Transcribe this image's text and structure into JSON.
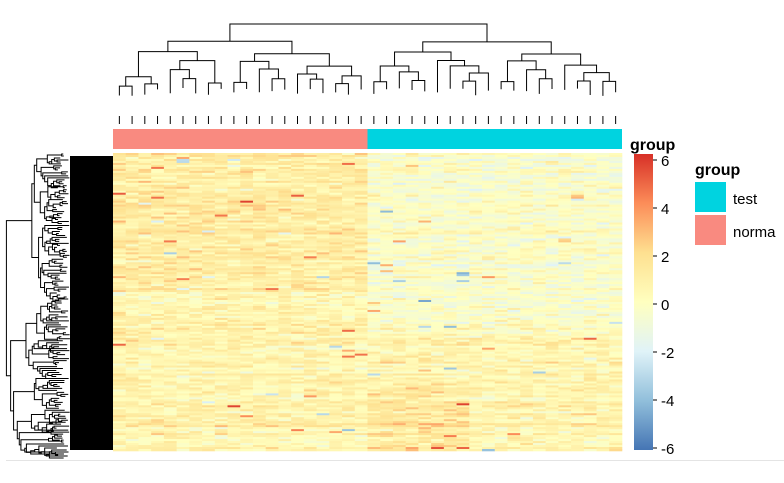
{
  "chart_data": {
    "type": "heatmap",
    "color_key": {
      "title": "group",
      "ticks": [
        "6",
        "4",
        "2",
        "0",
        "-2",
        "-4",
        "-6"
      ],
      "range": [
        -6,
        6
      ],
      "colors": [
        "#4575b4",
        "#91bfdb",
        "#e0f3f8",
        "#ffffbf",
        "#fee090",
        "#fc8d59",
        "#d73027"
      ]
    },
    "legend": {
      "title": "group",
      "placement": "right",
      "items": [
        {
          "label": "test",
          "color": "#00d3e0"
        },
        {
          "label": "norma",
          "color": "#f98a80"
        }
      ]
    },
    "column_groups": [
      {
        "label": "norma",
        "count": 20,
        "color": "#f98a80"
      },
      {
        "label": "test",
        "count": 20,
        "color": "#00d3e0"
      }
    ],
    "row_dendrogram": true,
    "column_dendrogram": true
  }
}
